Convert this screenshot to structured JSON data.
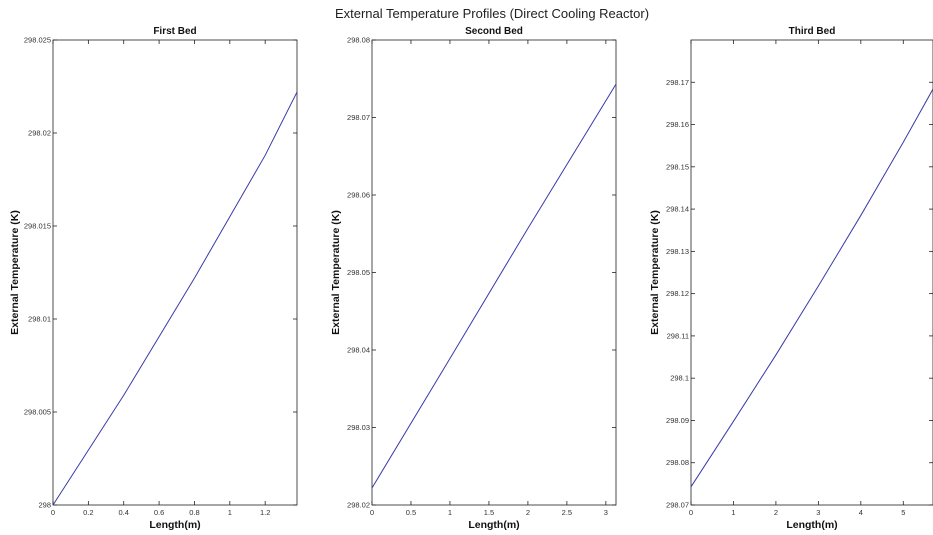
{
  "figure": {
    "title": "External Temperature Profiles (Direct Cooling Reactor)"
  },
  "chart_data": [
    {
      "type": "line",
      "title": "First Bed",
      "xlabel": "Length(m)",
      "ylabel": "External Temperature (K)",
      "xlim": [
        0,
        1.38
      ],
      "ylim": [
        298,
        298.025
      ],
      "xticks": [
        0,
        0.2,
        0.4,
        0.6,
        0.8,
        1,
        1.2
      ],
      "xtick_labels": [
        "0",
        "0.2",
        "0.4",
        "0.6",
        "0.8",
        "1",
        "1.2"
      ],
      "yticks": [
        298,
        298.005,
        298.01,
        298.015,
        298.02,
        298.025
      ],
      "ytick_labels": [
        "298",
        "298.005",
        "298.01",
        "298.015",
        "298.02",
        "298.025"
      ],
      "grid": false,
      "series": [
        {
          "color": "#3a3aaa",
          "x": [
            0,
            0.4,
            0.8,
            1.2,
            1.38
          ],
          "y": [
            298.0,
            298.0059,
            298.0122,
            298.0188,
            298.0222
          ]
        }
      ]
    },
    {
      "type": "line",
      "title": "Second Bed",
      "xlabel": "Length(m)",
      "ylabel": "External Temperature (K)",
      "xlim": [
        0,
        3.13
      ],
      "ylim": [
        298.02,
        298.08
      ],
      "xticks": [
        0,
        0.5,
        1,
        1.5,
        2,
        2.5,
        3
      ],
      "xtick_labels": [
        "0",
        "0.5",
        "1",
        "1.5",
        "2",
        "2.5",
        "3"
      ],
      "yticks": [
        298.02,
        298.03,
        298.04,
        298.05,
        298.06,
        298.07,
        298.08
      ],
      "ytick_labels": [
        "298.02",
        "298.03",
        "298.04",
        "298.05",
        "298.06",
        "298.07",
        "298.08"
      ],
      "grid": false,
      "series": [
        {
          "color": "#3a3aaa",
          "x": [
            0,
            1,
            2,
            3.13
          ],
          "y": [
            298.0222,
            298.0389,
            298.0557,
            298.0743
          ]
        }
      ]
    },
    {
      "type": "line",
      "title": "Third Bed",
      "xlabel": "Length(m)",
      "ylabel": "External Temperature (K)",
      "xlim": [
        0,
        5.7
      ],
      "ylim": [
        298.07,
        298.18
      ],
      "xticks": [
        0,
        1,
        2,
        3,
        4,
        5
      ],
      "xtick_labels": [
        "0",
        "1",
        "2",
        "3",
        "4",
        "5"
      ],
      "yticks": [
        298.07,
        298.08,
        298.09,
        298.1,
        298.11,
        298.12,
        298.13,
        298.14,
        298.15,
        298.16,
        298.17
      ],
      "ytick_labels": [
        "298.07",
        "298.08",
        "298.09",
        "298.1",
        "298.11",
        "298.12",
        "298.13",
        "298.14",
        "298.15",
        "298.16",
        "298.17"
      ],
      "grid": false,
      "series": [
        {
          "color": "#3a3aaa",
          "x": [
            0,
            1,
            2,
            3,
            4,
            5,
            5.7
          ],
          "y": [
            298.0743,
            298.0898,
            298.1055,
            298.1218,
            298.1385,
            298.1558,
            298.1684
          ]
        }
      ]
    }
  ]
}
